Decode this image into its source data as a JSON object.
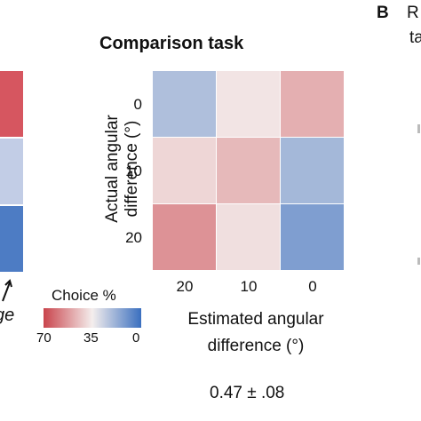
{
  "panel_label": "B",
  "cropped_text": {
    "right_top": "R",
    "right_second": "ta",
    "left_italic": "ge"
  },
  "legend": {
    "title": "Choice %",
    "ticks": [
      "70",
      "35",
      "0"
    ]
  },
  "stat_text": "0.47 ± .08",
  "colors": {
    "high": "#c9444c",
    "mid": "#f4eeed",
    "low": "#3a6fbf"
  },
  "left_partial_cells": [
    "#d65660",
    "#c2cde6",
    "#4d7cc4"
  ],
  "chart_data": {
    "type": "heatmap",
    "title": "Comparison task",
    "xlabel": "Estimated angular difference (°)",
    "ylabel": "Actual angular difference (°)",
    "x_categories": [
      "20",
      "10",
      "0"
    ],
    "y_categories": [
      "0",
      "10",
      "20"
    ],
    "values": [
      [
        22,
        37,
        48
      ],
      [
        40,
        46,
        20
      ],
      [
        54,
        38,
        13
      ]
    ],
    "color_scale": {
      "min": 0,
      "max": 70,
      "min_color": "#3a6fbf",
      "mid_color": "#f4eeed",
      "max_color": "#c9444c"
    }
  }
}
